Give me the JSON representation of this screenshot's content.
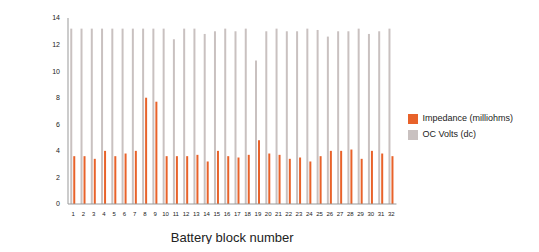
{
  "chart_data": {
    "type": "bar",
    "x_label": "Battery block number",
    "categories": [
      "1",
      "2",
      "3",
      "4",
      "5",
      "6",
      "7",
      "8",
      "9",
      "10",
      "11",
      "12",
      "13",
      "14",
      "15",
      "16",
      "17",
      "18",
      "19",
      "20",
      "21",
      "22",
      "23",
      "24",
      "25",
      "26",
      "27",
      "28",
      "29",
      "30",
      "31",
      "32"
    ],
    "series": [
      {
        "name": "OC Volts (dc)",
        "color": "#c9c1c0",
        "values": [
          13.2,
          13.2,
          13.2,
          13.2,
          13.2,
          13.2,
          13.2,
          13.2,
          13.2,
          13.2,
          12.4,
          13.2,
          13.2,
          12.8,
          13.0,
          13.2,
          13.0,
          13.2,
          10.8,
          13.0,
          13.2,
          13.0,
          13.0,
          13.2,
          13.1,
          12.6,
          13.0,
          13.0,
          13.2,
          12.8,
          13.0,
          13.2
        ]
      },
      {
        "name": "Impedance (milliohms)",
        "color": "#e8622a",
        "values": [
          3.6,
          3.6,
          3.4,
          4.0,
          3.6,
          3.8,
          4.0,
          8.0,
          7.7,
          3.6,
          3.6,
          3.6,
          3.7,
          3.2,
          4.0,
          3.6,
          3.5,
          3.7,
          4.8,
          3.8,
          3.7,
          3.4,
          3.5,
          3.2,
          3.6,
          4.0,
          4.0,
          4.1,
          3.4,
          4.0,
          3.8,
          3.6
        ]
      }
    ],
    "ylim": [
      0,
      14
    ],
    "yticks": [
      0,
      2,
      4,
      6,
      8,
      10,
      12,
      14
    ],
    "grid": false,
    "legend": "right"
  }
}
